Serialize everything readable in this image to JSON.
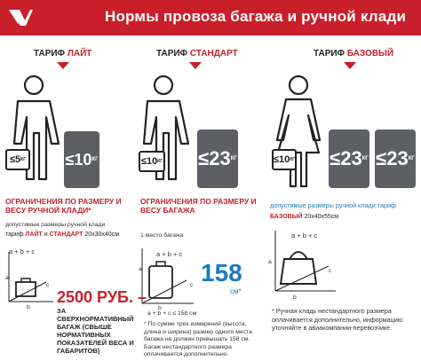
{
  "header": {
    "title": "Нормы провоза багажа и ручной клади"
  },
  "tariffs": [
    {
      "prefix": "ТАРИФ",
      "name": "ЛАЙТ"
    },
    {
      "prefix": "ТАРИФ",
      "name": "СТАНДАРТ"
    },
    {
      "prefix": "ТАРИФ",
      "name": "БАЗОВЫЙ"
    }
  ],
  "col1": {
    "hand_weight": "5",
    "hand_unit": "КГ",
    "bag_weight": "10",
    "bag_unit": "КГ",
    "restrict": "ОГРАНИЧЕНИЯ ПО РАЗМЕРУ И ВЕСУ РУЧНОЙ КЛАДИ*",
    "allowed1": "допустимые размеры ручной клади",
    "allowed2_prefix": "тариф",
    "allowed2_l": "ЛАЙТ",
    "allowed2_and": "и",
    "allowed2_s": "СТАНДАРТ",
    "allowed2_dims": "20х30х40см",
    "formula": "a + b + c",
    "price": "2500 РУБ. –",
    "price_note": "ЗА СВЕРХНОРМАТИВНЫЙ БАГАЖ (СВЫШЕ НОРМАТИВНЫХ ПОКАЗАТЕЛЕЙ ВЕСА И ГАБАРИТОВ)"
  },
  "col2": {
    "hand_weight": "10",
    "hand_unit": "КГ",
    "bag_weight": "23",
    "bag_unit": "КГ",
    "restrict": "ОГРАНИЧЕНИЯ ПО РАЗМЕРУ И ВЕСУ БАГАЖА",
    "one_place": "1 место багажа",
    "formula": "a + b + c",
    "big": "158",
    "cm": "см*",
    "sum": "a + b + c ≤ 158 см",
    "note": "* По сумме трех измерений (высота, длина и ширина) размер одного места багажа не должен превышать 158 см. Багаж нестандартного размера оплачивается дополнительно."
  },
  "col3": {
    "hand_weight": "10",
    "hand_unit": "КГ",
    "bag1_weight": "23",
    "bag2_weight": "23",
    "bag_unit": "КГ",
    "allowed1": "допустимые размеры ручной клади тариф",
    "allowed2_name": "БАЗОВЫЙ",
    "allowed2_dims": "20х40х55см",
    "formula": "a + b + c",
    "note": "* Ручная кладь нестандартного размера оплачивается дополнительно, информацию уточняйте в авиакомпании-перевозчике."
  },
  "axis": {
    "a": "a",
    "b": "b",
    "c": "c"
  },
  "colors": {
    "brand": "#c81f2b",
    "bag": "#5d5f64",
    "accent": "#1b7cc1"
  }
}
